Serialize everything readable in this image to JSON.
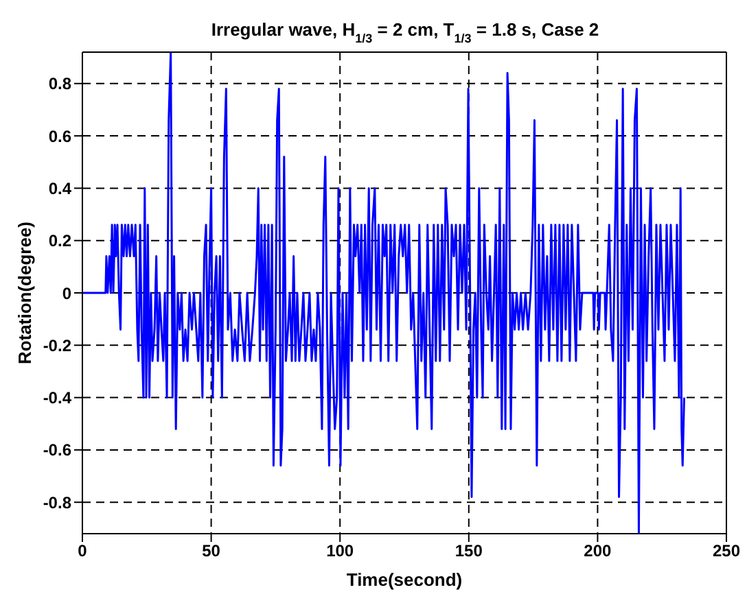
{
  "chart_data": {
    "type": "line",
    "title": "Irregular wave, H$_{1/3}$ = 2 cm, T$_{1/3}$ = 1.8 s, Case 2",
    "xlabel": "Time(second)",
    "ylabel": "Rotation(degree)",
    "xlim": [
      0,
      250
    ],
    "xticks": [
      0,
      50,
      100,
      150,
      200,
      250
    ],
    "ylim": [
      -0.92,
      0.92
    ],
    "yticks": [
      -0.8,
      -0.6,
      -0.4,
      -0.2,
      0,
      0.2,
      0.4,
      0.6,
      0.8
    ],
    "grid": true,
    "legend": false,
    "line_style": "solid",
    "marker": "none",
    "x": [
      0,
      9,
      9.3,
      9.8,
      10.5,
      11,
      11.5,
      12,
      12.6,
      13,
      13.6,
      14.2,
      14.8,
      15.3,
      16,
      16.6,
      17.2,
      17.8,
      18.5,
      19.2,
      20,
      20.6,
      21.3,
      21.8,
      22.4,
      23,
      23.7,
      24.2,
      24.8,
      25.4,
      26,
      26.6,
      27.2,
      28,
      28.7,
      29.3,
      30,
      30.7,
      31.4,
      32,
      32.8,
      33.5,
      34.3,
      35,
      35.6,
      36.3,
      37,
      37.8,
      38.5,
      39.2,
      40,
      40.8,
      41.6,
      42.5,
      43.3,
      44.2,
      45,
      45.8,
      46.6,
      47.3,
      48,
      48.7,
      49.4,
      50,
      50.6,
      51.3,
      52,
      52.7,
      53.4,
      54.2,
      55,
      55.8,
      56.5,
      57.4,
      58.3,
      59.2,
      60.2,
      61,
      62,
      63,
      64,
      65,
      66,
      67,
      67.7,
      68.3,
      68.9,
      69.5,
      70.1,
      70.8,
      71.5,
      72.2,
      72.9,
      73.6,
      74.2,
      75,
      75.6,
      76.3,
      77,
      77.6,
      78.3,
      79,
      79.8,
      80.5,
      81.3,
      82,
      82.7,
      83.4,
      84.2,
      85,
      85.8,
      86.6,
      87.4,
      88.2,
      89,
      89.8,
      90.6,
      91.4,
      92.2,
      93,
      93.6,
      94.3,
      95,
      95.8,
      96.5,
      97.2,
      98,
      98.8,
      99.4,
      100.2,
      101,
      101.8,
      102.5,
      103.2,
      103.9,
      104.6,
      105.4,
      106,
      106.8,
      107.6,
      108.3,
      109,
      109.7,
      110.4,
      111.2,
      111.9,
      112.6,
      113.5,
      114.2,
      115,
      115.8,
      116.6,
      117.3,
      118,
      118.8,
      119.6,
      120.4,
      121.2,
      122,
      122.8,
      123.6,
      124.4,
      125.2,
      126,
      126.8,
      127.6,
      128.4,
      129.2,
      130,
      130.8,
      131.6,
      132.4,
      133.2,
      134,
      134.8,
      135.6,
      136.4,
      137.2,
      138,
      138.8,
      139.6,
      140.4,
      141,
      141.8,
      142.6,
      143.4,
      144.2,
      145,
      145.8,
      146.6,
      147.4,
      148.2,
      149,
      149.8,
      150.5,
      151.1,
      151.8,
      152.5,
      153.2,
      154,
      154.8,
      155.4,
      156,
      156.8,
      157.6,
      158.2,
      159,
      159.8,
      160.5,
      161.2,
      162,
      162.8,
      163.6,
      164.2,
      165,
      165.6,
      166.3,
      167,
      167.8,
      168.6,
      169.4,
      170.2,
      171,
      172,
      173,
      174,
      174.8,
      175.5,
      176.4,
      177.2,
      178,
      178.8,
      179.6,
      180.4,
      181.2,
      182,
      182.8,
      183.6,
      184.4,
      185.2,
      186,
      186.8,
      187.6,
      188.4,
      189.2,
      190,
      190.8,
      191.6,
      192.4,
      193.2,
      194,
      198.3,
      198.6,
      199,
      200.2,
      200.5,
      201,
      202.8,
      203.1,
      203.6,
      204.5,
      205.2,
      206,
      206.8,
      207.5,
      208.3,
      209,
      209.8,
      210.5,
      211.3,
      212,
      212.8,
      213.6,
      214.4,
      215.2,
      216,
      216.8,
      217.6,
      218.3,
      219,
      219.8,
      220.6,
      221.3,
      222,
      222.8,
      223.6,
      224.4,
      225.2,
      226,
      226.8,
      227.6,
      228.4,
      229.2,
      230,
      230.8,
      231.6,
      232.2,
      232.6,
      233,
      233.6
    ],
    "series": [
      {
        "color": "#0000ff",
        "values": [
          0,
          0,
          0.14,
          0,
          0.14,
          0,
          0.26,
          0,
          0.26,
          0.14,
          0.26,
          0,
          -0.14,
          0.26,
          0.14,
          0.26,
          0.14,
          0.26,
          0.14,
          0.26,
          0.14,
          0.26,
          -0.14,
          -0.26,
          0.26,
          -0.14,
          -0.4,
          0.4,
          -0.4,
          0.26,
          -0.4,
          0,
          -0.26,
          -0.14,
          0.14,
          -0.26,
          0,
          -0.14,
          -0.26,
          0,
          -0.4,
          0.66,
          0.92,
          -0.4,
          0.14,
          -0.52,
          0,
          -0.14,
          0,
          -0.26,
          -0.14,
          -0.26,
          0,
          -0.14,
          0,
          -0.14,
          -0.26,
          0,
          -0.4,
          0.14,
          0.26,
          -0.26,
          0.14,
          0.4,
          -0.4,
          0,
          0.14,
          -0.26,
          0.14,
          -0.4,
          0.52,
          0.78,
          -0.14,
          0,
          -0.26,
          -0.14,
          -0.26,
          0,
          -0.14,
          -0.26,
          0,
          -0.26,
          -0.14,
          0,
          0.14,
          0.4,
          -0.26,
          0.26,
          -0.14,
          0.26,
          -0.26,
          0.26,
          -0.4,
          0.26,
          -0.66,
          -0.14,
          0.66,
          0.78,
          -0.66,
          -0.52,
          0.52,
          -0.26,
          -0.14,
          0,
          -0.26,
          0.14,
          -0.26,
          0,
          -0.26,
          -0.14,
          0,
          -0.26,
          -0.14,
          0,
          -0.26,
          -0.14,
          -0.26,
          0,
          -0.14,
          -0.52,
          0.26,
          0.52,
          -0.14,
          -0.66,
          0,
          -0.26,
          -0.52,
          -0.4,
          0.4,
          -0.66,
          0,
          -0.4,
          0,
          -0.52,
          0.4,
          -0.26,
          0.26,
          0.14,
          0.26,
          0,
          0.26,
          -0.26,
          0.26,
          -0.14,
          0.4,
          -0.26,
          0.26,
          0.4,
          -0.14,
          0.26,
          -0.26,
          0.26,
          0.14,
          0.26,
          -0.26,
          0.26,
          0,
          0.26,
          -0.26,
          0.14,
          0.26,
          0.14,
          0.26,
          0,
          0.26,
          -0.14,
          0,
          -0.26,
          -0.52,
          0.26,
          -0.26,
          0,
          -0.4,
          0.26,
          -0.14,
          -0.52,
          0.26,
          -0.26,
          0.26,
          -0.26,
          0.26,
          -0.14,
          0.4,
          0.26,
          -0.26,
          0.26,
          0.14,
          0.26,
          -0.14,
          0.26,
          0,
          0.26,
          -0.14,
          0.78,
          0,
          -0.78,
          -0.14,
          0,
          -0.4,
          0.4,
          -0.14,
          -0.4,
          0.26,
          0,
          -0.14,
          0.14,
          -0.26,
          0,
          0.26,
          -0.4,
          0.4,
          -0.52,
          0.26,
          -0.52,
          0.84,
          0.66,
          -0.52,
          0,
          -0.14,
          0,
          -0.14,
          0,
          -0.14,
          0,
          -0.14,
          0,
          0.26,
          0.66,
          -0.66,
          0.26,
          -0.26,
          0.26,
          -0.14,
          0.14,
          -0.26,
          0.26,
          -0.14,
          0.26,
          -0.26,
          0.26,
          -0.26,
          0.26,
          -0.14,
          0.26,
          -0.26,
          0.26,
          0,
          -0.26,
          0.26,
          -0.14,
          0,
          0,
          -0.14,
          0,
          0,
          -0.14,
          0,
          0,
          -0.14,
          0,
          0.26,
          -0.14,
          -0.26,
          0.26,
          0.66,
          -0.78,
          -0.4,
          0.78,
          -0.52,
          0.26,
          -0.26,
          0.4,
          -0.14,
          0.66,
          0.78,
          -0.92,
          0.4,
          -0.4,
          0.26,
          -0.26,
          0.14,
          0.4,
          -0.14,
          -0.52,
          0.26,
          -0.14,
          0.26,
          0,
          -0.26,
          0.26,
          -0.14,
          0.26,
          0,
          -0.26,
          0.26,
          -0.4,
          0.4,
          -0.52,
          -0.66,
          -0.4
        ]
      }
    ]
  }
}
